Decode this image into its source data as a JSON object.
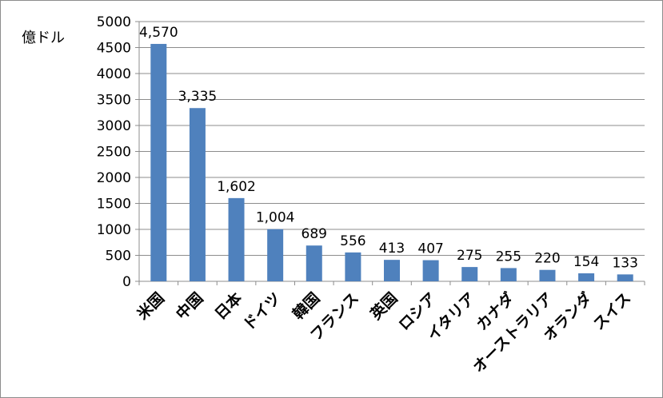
{
  "chart_data": {
    "type": "bar",
    "ylabel": "億ドル",
    "ylim": [
      0,
      5000
    ],
    "yticks": [
      0,
      500,
      1000,
      1500,
      2000,
      2500,
      3000,
      3500,
      4000,
      4500,
      5000
    ],
    "grid": true,
    "legend": "none",
    "bar_color": "#4f81bd",
    "categories": [
      "米国",
      "中国",
      "日本",
      "ドイツ",
      "韓国",
      "フランス",
      "英国",
      "ロシア",
      "イタリア",
      "カナダ",
      "オーストラリア",
      "オランダ",
      "スイス"
    ],
    "values": [
      4570,
      3335,
      1602,
      1004,
      689,
      556,
      413,
      407,
      275,
      255,
      220,
      154,
      133
    ],
    "data_labels": [
      "4,570",
      "3,335",
      "1,602",
      "1,004",
      "689",
      "556",
      "413",
      "407",
      "275",
      "255",
      "220",
      "154",
      "133"
    ]
  }
}
